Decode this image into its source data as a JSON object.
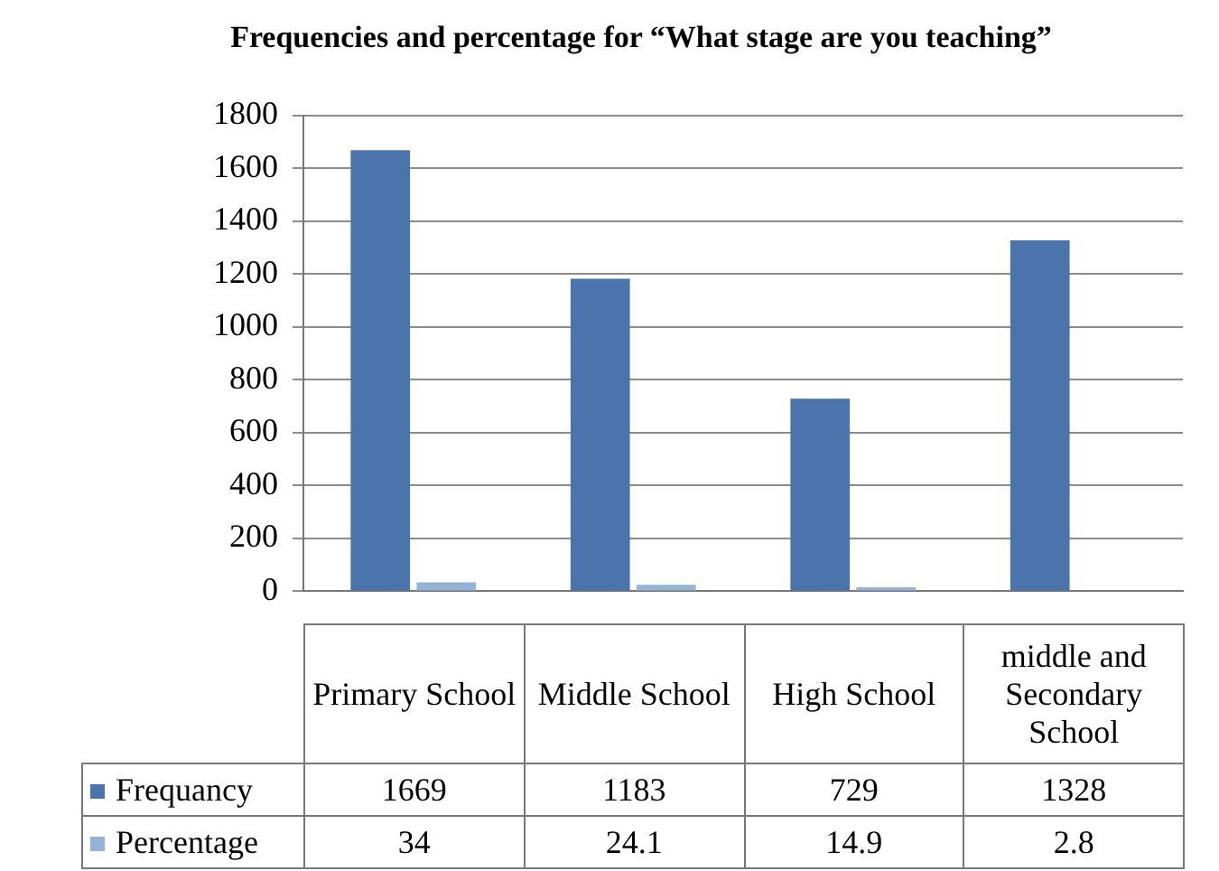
{
  "chart_data": {
    "type": "bar",
    "title": "Frequencies and percentage for “What stage are you teaching”",
    "categories": [
      "Primary School",
      "Middle School",
      "High School",
      "middle and Secondary School"
    ],
    "series": [
      {
        "name": "Frequancy",
        "color": "#4a74ab",
        "values": [
          1669,
          1183,
          729,
          1328
        ]
      },
      {
        "name": "Percentage",
        "color": "#95b3d7",
        "values": [
          34,
          24.1,
          14.9,
          2.8
        ]
      }
    ],
    "ylim": [
      0,
      1800
    ],
    "yticks": [
      0,
      200,
      400,
      600,
      800,
      1000,
      1200,
      1400,
      1600,
      1800
    ],
    "grid": "y",
    "legend": "bottom",
    "data_labels": true
  }
}
